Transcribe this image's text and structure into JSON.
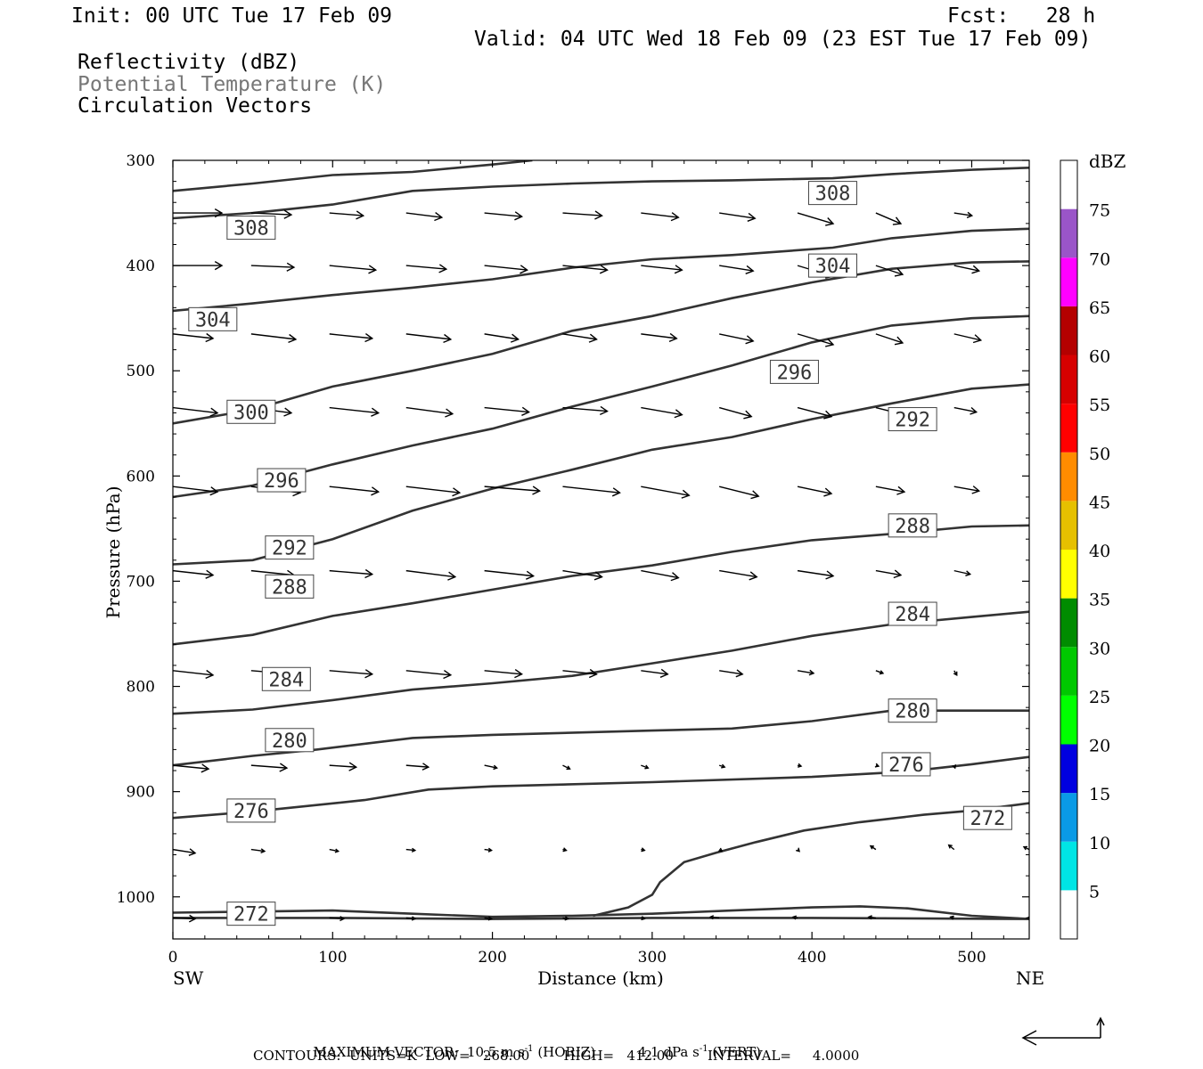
{
  "header": {
    "init": "Init: 00 UTC Tue 17 Feb 09",
    "fcst": "Fcst:   28 h",
    "valid": "Valid: 04 UTC Wed 18 Feb 09 (23 EST Tue 17 Feb 09)",
    "fields": [
      {
        "label": "Reflectivity (dBZ)",
        "color": "#000000"
      },
      {
        "label": "Potential Temperature (K)",
        "color": "#777777"
      },
      {
        "label": "Circulation Vectors",
        "color": "#000000"
      }
    ]
  },
  "chart_data": {
    "type": "cross-section",
    "xlabel": "Distance (km)",
    "ylabel": "Pressure (hPa)",
    "x_ticks": [
      0,
      100,
      200,
      300,
      400,
      500
    ],
    "y_ticks": [
      300,
      400,
      500,
      600,
      700,
      800,
      900,
      1000
    ],
    "xlim": [
      0,
      536
    ],
    "ylim": [
      300,
      1040
    ],
    "y_inverted": true,
    "grid": false,
    "endpoint_left": "SW",
    "endpoint_right": "NE",
    "colorbar": {
      "title": "dBZ",
      "levels": [
        5,
        10,
        15,
        20,
        25,
        30,
        35,
        40,
        45,
        50,
        55,
        60,
        65,
        70,
        75
      ],
      "colors": [
        "#ffffff",
        "#00e5e5",
        "#0a9ae6",
        "#0000e0",
        "#00ff00",
        "#00c800",
        "#008c00",
        "#ffff00",
        "#e6c000",
        "#ff8c00",
        "#ff0000",
        "#d60000",
        "#b40000",
        "#ff00ff",
        "#9a55c8",
        "#ffffff"
      ]
    },
    "theta_contours": [
      {
        "value": 272,
        "label": "272",
        "labels_at": [
          [
            49,
            1016
          ],
          [
            510,
            925
          ]
        ],
        "points": [
          [
            0,
            1015
          ],
          [
            50,
            1014
          ],
          [
            100,
            1013
          ],
          [
            150,
            1016
          ],
          [
            200,
            1019
          ],
          [
            250,
            1018
          ],
          [
            300,
            1016
          ],
          [
            350,
            1013
          ],
          [
            400,
            1010
          ],
          [
            430,
            1009
          ],
          [
            460,
            1011
          ],
          [
            500,
            1018
          ],
          [
            536,
            1021
          ]
        ]
      },
      {
        "value": 272,
        "label": "",
        "labels_at": [],
        "points": [
          [
            0,
            1020
          ],
          [
            100,
            1020
          ],
          [
            200,
            1021
          ],
          [
            300,
            1020
          ],
          [
            400,
            1020
          ],
          [
            536,
            1021
          ]
        ]
      },
      {
        "value": 272,
        "label": "",
        "labels_at": [],
        "points": [
          [
            263,
            1018
          ],
          [
            285,
            1010
          ],
          [
            300,
            998
          ],
          [
            305,
            986
          ],
          [
            320,
            967
          ],
          [
            340,
            958
          ],
          [
            365,
            948
          ],
          [
            395,
            937
          ],
          [
            430,
            929
          ],
          [
            470,
            922
          ],
          [
            500,
            918
          ],
          [
            536,
            911
          ]
        ]
      },
      {
        "value": 276,
        "label": "276",
        "labels_at": [
          [
            49,
            918
          ],
          [
            459,
            874
          ]
        ],
        "points": [
          [
            0,
            925
          ],
          [
            50,
            919
          ],
          [
            120,
            908
          ],
          [
            160,
            898
          ],
          [
            200,
            895
          ],
          [
            300,
            891
          ],
          [
            400,
            886
          ],
          [
            459,
            881
          ],
          [
            500,
            874
          ],
          [
            536,
            867
          ]
        ]
      },
      {
        "value": 280,
        "label": "280",
        "labels_at": [
          [
            73,
            851
          ],
          [
            463,
            823
          ]
        ],
        "points": [
          [
            0,
            875
          ],
          [
            50,
            866
          ],
          [
            90,
            860
          ],
          [
            150,
            849
          ],
          [
            200,
            846
          ],
          [
            300,
            842
          ],
          [
            350,
            840
          ],
          [
            400,
            833
          ],
          [
            450,
            823
          ],
          [
            500,
            823
          ],
          [
            536,
            823
          ]
        ]
      },
      {
        "value": 284,
        "label": "284",
        "labels_at": [
          [
            71,
            793
          ],
          [
            463,
            731
          ]
        ],
        "points": [
          [
            0,
            826
          ],
          [
            50,
            822
          ],
          [
            100,
            813
          ],
          [
            150,
            803
          ],
          [
            200,
            797
          ],
          [
            250,
            790
          ],
          [
            300,
            778
          ],
          [
            350,
            766
          ],
          [
            400,
            752
          ],
          [
            450,
            741
          ],
          [
            500,
            734
          ],
          [
            536,
            729
          ]
        ]
      },
      {
        "value": 288,
        "label": "288",
        "labels_at": [
          [
            73,
            705
          ],
          [
            463,
            647
          ]
        ],
        "points": [
          [
            0,
            760
          ],
          [
            50,
            751
          ],
          [
            100,
            733
          ],
          [
            150,
            721
          ],
          [
            200,
            708
          ],
          [
            250,
            695
          ],
          [
            300,
            685
          ],
          [
            350,
            672
          ],
          [
            400,
            661
          ],
          [
            450,
            655
          ],
          [
            500,
            648
          ],
          [
            536,
            647
          ]
        ]
      },
      {
        "value": 292,
        "label": "292",
        "labels_at": [
          [
            73,
            668
          ],
          [
            463,
            546
          ]
        ],
        "points": [
          [
            0,
            684
          ],
          [
            50,
            680
          ],
          [
            100,
            660
          ],
          [
            150,
            633
          ],
          [
            200,
            612
          ],
          [
            250,
            594
          ],
          [
            300,
            575
          ],
          [
            350,
            563
          ],
          [
            400,
            546
          ],
          [
            450,
            531
          ],
          [
            500,
            517
          ],
          [
            536,
            513
          ]
        ]
      },
      {
        "value": 296,
        "label": "296",
        "labels_at": [
          [
            68,
            604
          ],
          [
            389,
            501
          ]
        ],
        "points": [
          [
            0,
            620
          ],
          [
            50,
            609
          ],
          [
            100,
            589
          ],
          [
            150,
            571
          ],
          [
            200,
            555
          ],
          [
            250,
            534
          ],
          [
            300,
            515
          ],
          [
            350,
            495
          ],
          [
            400,
            473
          ],
          [
            450,
            457
          ],
          [
            500,
            450
          ],
          [
            536,
            448
          ]
        ]
      },
      {
        "value": 300,
        "label": "300",
        "labels_at": [
          [
            49,
            539
          ]
        ],
        "points": [
          [
            0,
            550
          ],
          [
            50,
            537
          ],
          [
            100,
            515
          ],
          [
            150,
            500
          ],
          [
            200,
            484
          ],
          [
            250,
            462
          ],
          [
            300,
            448
          ],
          [
            350,
            431
          ],
          [
            400,
            416
          ],
          [
            450,
            403
          ],
          [
            500,
            397
          ],
          [
            536,
            396
          ]
        ]
      },
      {
        "value": 304,
        "label": "304",
        "labels_at": [
          [
            25,
            451
          ],
          [
            413,
            400
          ]
        ],
        "points": [
          [
            0,
            443
          ],
          [
            50,
            436
          ],
          [
            100,
            428
          ],
          [
            150,
            421
          ],
          [
            200,
            413
          ],
          [
            250,
            402
          ],
          [
            300,
            394
          ],
          [
            350,
            390
          ],
          [
            413,
            383
          ],
          [
            450,
            374
          ],
          [
            500,
            367
          ],
          [
            536,
            365
          ]
        ]
      },
      {
        "value": 308,
        "label": "308",
        "labels_at": [
          [
            49,
            364
          ],
          [
            413,
            331
          ]
        ],
        "points": [
          [
            0,
            355
          ],
          [
            50,
            350
          ],
          [
            100,
            342
          ],
          [
            150,
            329
          ],
          [
            200,
            325
          ],
          [
            250,
            322
          ],
          [
            300,
            320
          ],
          [
            350,
            319
          ],
          [
            413,
            317
          ],
          [
            450,
            313
          ],
          [
            500,
            309
          ],
          [
            536,
            307
          ]
        ]
      },
      {
        "value": 312,
        "label": "",
        "labels_at": [],
        "points": [
          [
            0,
            329
          ],
          [
            50,
            322
          ],
          [
            100,
            314
          ],
          [
            150,
            311
          ],
          [
            200,
            304
          ],
          [
            225,
            300
          ]
        ]
      }
    ],
    "vector_rows_hpa": [
      350,
      400,
      465,
      535,
      610,
      690,
      785,
      875,
      955,
      1020
    ],
    "vector_cols_km": [
      0,
      49,
      98,
      146,
      195,
      244,
      293,
      342,
      391,
      440,
      489,
      536
    ],
    "vectors": [
      [
        [
          55,
          0
        ],
        [
          45,
          -2
        ],
        [
          38,
          -3
        ],
        [
          40,
          -5
        ],
        [
          42,
          -4
        ],
        [
          44,
          -3
        ],
        [
          42,
          -5
        ],
        [
          40,
          -6
        ],
        [
          40,
          -12
        ],
        [
          28,
          -12
        ],
        [
          20,
          -3
        ],
        [
          20,
          -1
        ]
      ],
      [
        [
          55,
          0
        ],
        [
          48,
          -2
        ],
        [
          52,
          -5
        ],
        [
          45,
          -4
        ],
        [
          48,
          -5
        ],
        [
          50,
          -5
        ],
        [
          46,
          -5
        ],
        [
          38,
          -6
        ],
        [
          40,
          -12
        ],
        [
          30,
          -10
        ],
        [
          28,
          -6
        ],
        [
          24,
          -6
        ]
      ],
      [
        [
          45,
          -5
        ],
        [
          50,
          -6
        ],
        [
          48,
          -5
        ],
        [
          50,
          -6
        ],
        [
          38,
          -6
        ],
        [
          38,
          -6
        ],
        [
          40,
          -5
        ],
        [
          38,
          -8
        ],
        [
          40,
          -12
        ],
        [
          30,
          -10
        ],
        [
          30,
          -7
        ],
        [
          32,
          -7
        ]
      ],
      [
        [
          50,
          -6
        ],
        [
          45,
          -6
        ],
        [
          55,
          -6
        ],
        [
          52,
          -7
        ],
        [
          50,
          -5
        ],
        [
          50,
          -4
        ],
        [
          46,
          -8
        ],
        [
          36,
          -10
        ],
        [
          38,
          -10
        ],
        [
          28,
          -7
        ],
        [
          25,
          -5
        ],
        [
          30,
          -7
        ]
      ],
      [
        [
          50,
          -6
        ],
        [
          55,
          -7
        ],
        [
          55,
          -6
        ],
        [
          60,
          -7
        ],
        [
          62,
          -5
        ],
        [
          64,
          -7
        ],
        [
          54,
          -10
        ],
        [
          44,
          -11
        ],
        [
          38,
          -8
        ],
        [
          32,
          -6
        ],
        [
          28,
          -5
        ],
        [
          22,
          -4
        ]
      ],
      [
        [
          45,
          -5
        ],
        [
          48,
          -5
        ],
        [
          48,
          -4
        ],
        [
          55,
          -7
        ],
        [
          55,
          -6
        ],
        [
          44,
          -7
        ],
        [
          42,
          -8
        ],
        [
          42,
          -7
        ],
        [
          40,
          -6
        ],
        [
          28,
          -5
        ],
        [
          18,
          -4
        ],
        [
          18,
          -4
        ]
      ],
      [
        [
          45,
          -5
        ],
        [
          48,
          -4
        ],
        [
          48,
          -4
        ],
        [
          50,
          -5
        ],
        [
          42,
          -4
        ],
        [
          38,
          -4
        ],
        [
          30,
          -4
        ],
        [
          26,
          -4
        ],
        [
          18,
          -3
        ],
        [
          8,
          -3
        ],
        [
          3,
          -5
        ],
        [
          2,
          -5
        ]
      ],
      [
        [
          40,
          -4
        ],
        [
          40,
          -3
        ],
        [
          30,
          -2
        ],
        [
          25,
          -2
        ],
        [
          14,
          -3
        ],
        [
          8,
          -4
        ],
        [
          8,
          -3
        ],
        [
          6,
          -2
        ],
        [
          4,
          -1
        ],
        [
          3,
          -1
        ],
        [
          1,
          -3
        ],
        [
          2,
          -5
        ]
      ],
      [
        [
          25,
          -4
        ],
        [
          15,
          -2
        ],
        [
          10,
          -2
        ],
        [
          10,
          -1
        ],
        [
          8,
          -1
        ],
        [
          4,
          -1
        ],
        [
          4,
          -1
        ],
        [
          3,
          -2
        ],
        [
          2,
          -2
        ],
        [
          -6,
          4
        ],
        [
          -6,
          5
        ],
        [
          -6,
          3
        ]
      ],
      [
        [
          25,
          -1
        ],
        [
          18,
          -2
        ],
        [
          16,
          -1
        ],
        [
          10,
          -1
        ],
        [
          8,
          -1
        ],
        [
          6,
          -1
        ],
        [
          4,
          -1
        ],
        [
          -10,
          1
        ],
        [
          -5,
          1
        ],
        [
          -8,
          1
        ],
        [
          -4,
          1
        ],
        [
          -2,
          0
        ]
      ]
    ]
  },
  "footer": {
    "max_vector_prefix": "MAXIMUM VECTOR:",
    "horiz_value": "10.5 m s",
    "horiz_exp": "-1",
    "horiz_tag": "(HORIZ)",
    "vert_value": "4.1 dPa s",
    "vert_exp": "-1",
    "vert_tag": "(VERT)",
    "contours": "CONTOURS:  UNITS=K  LOW=   268.00        HIGH=   412.00        INTERVAL=     4.0000"
  }
}
